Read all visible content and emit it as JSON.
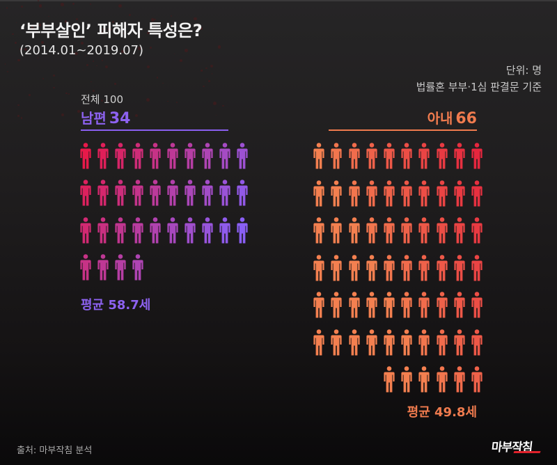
{
  "header": {
    "title": "‘부부살인’ 피해자 특성은?",
    "subtitle": "(2014.01~2019.07)",
    "unit": "단위: 명",
    "basis": "법률혼 부부·1심 판결문 기준"
  },
  "summary": {
    "total_label": "전체 100"
  },
  "husband": {
    "label": "남편",
    "count": "34",
    "average_age": "평균 58.7세",
    "color_start": "#e8194a",
    "color_end": "#8a5ff5"
  },
  "wife": {
    "label": "아내",
    "count": "66",
    "average_age": "평균 49.8세",
    "color_start": "#f48050",
    "color_end": "#e41c3c"
  },
  "footer": {
    "source": "출처: 마부작침 분석",
    "logo": "마부작침"
  },
  "chart_data": {
    "type": "pictogram",
    "title": "‘부부살인’ 피해자 특성은?",
    "subtitle": "(2014.01~2019.07)",
    "unit": "명",
    "note": "법률혼 부부·1심 판결문 기준",
    "total": 100,
    "categories": [
      "남편",
      "아내"
    ],
    "values": [
      34,
      66
    ],
    "average_age": [
      58.7,
      49.8
    ],
    "icons_per_row": 10,
    "series": [
      {
        "name": "남편",
        "value": 34,
        "average_age": 58.7,
        "rows": [
          10,
          10,
          10,
          4
        ],
        "color": "#8d62f0"
      },
      {
        "name": "아내",
        "value": 66,
        "average_age": 49.8,
        "rows": [
          10,
          10,
          10,
          10,
          10,
          10,
          6
        ],
        "color": "#f07b4e"
      }
    ],
    "source": "마부작침 분석"
  }
}
